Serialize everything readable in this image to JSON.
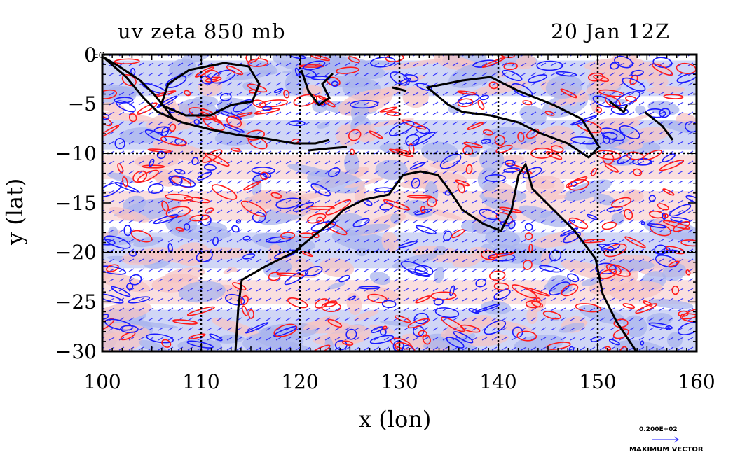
{
  "title": {
    "left": "uv zeta 850 mb",
    "right": "20 Jan 12Z"
  },
  "axes": {
    "xlabel": "x (lon)",
    "ylabel": "y (lat)",
    "x_ticks": [
      "100",
      "110",
      "120",
      "130",
      "140",
      "150",
      "160"
    ],
    "y_ticks": [
      "0",
      "−5",
      "−10",
      "−15",
      "−20",
      "−25",
      "−30"
    ],
    "xlim": [
      100,
      160
    ],
    "ylim": [
      -30,
      0
    ],
    "equator_label": "EQ"
  },
  "legend": {
    "vector_value": "0.200E+02",
    "vector_label": "MAXIMUM VECTOR"
  },
  "colors": {
    "negative_fill": "#aab4ee",
    "positive_fill": "#f5c4c4",
    "negative_contour": "#1a1aff",
    "positive_contour": "#ff1a1a",
    "coastline": "#000000",
    "vectors": "#1a1aff"
  },
  "chart_data": {
    "type": "heatmap",
    "description_fields": [
      "relative vorticity (zeta) at 850 mb",
      "wind vectors (u,v)"
    ],
    "xlim": [
      100,
      160
    ],
    "ylim": [
      -30,
      0
    ],
    "grid": true,
    "grid_lines_lon": [
      110,
      120,
      130,
      140,
      150
    ],
    "grid_lines_lat": [
      -10,
      -20
    ]
  }
}
